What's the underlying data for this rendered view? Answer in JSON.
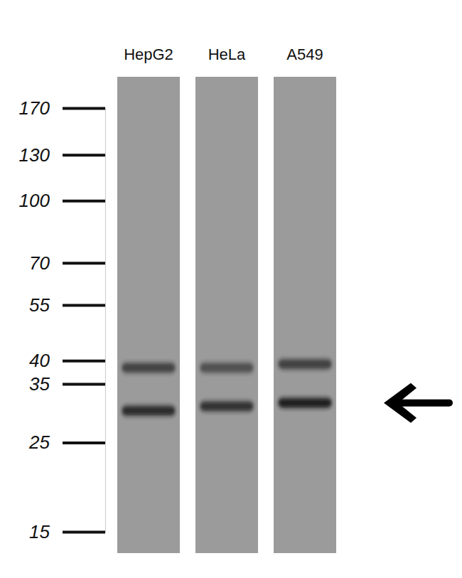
{
  "chart_data": {
    "type": "blot",
    "categories": [
      "HepG2",
      "HeLa",
      "A549"
    ],
    "series": [
      {
        "color": "#1e1e1e",
        "values": [
          38.4,
          38.4,
          39.2
        ],
        "intensity": [
          0.7,
          0.6,
          0.72
        ]
      },
      {
        "color": "#161616",
        "values": [
          30.0,
          30.8,
          31.4
        ],
        "intensity": [
          0.85,
          0.8,
          0.95
        ]
      }
    ],
    "log": "y",
    "ylim": [
      15,
      170
    ],
    "yticks": [
      15,
      25,
      35,
      40,
      55,
      70,
      100,
      130,
      170
    ],
    "arrow": 31.4
  }
}
